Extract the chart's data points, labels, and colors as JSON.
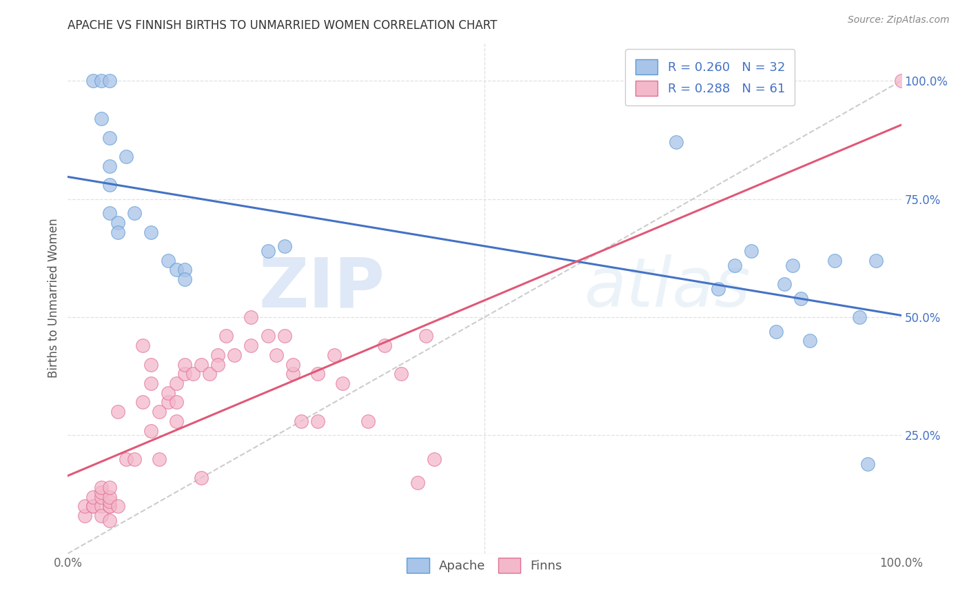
{
  "title": "APACHE VS FINNISH BIRTHS TO UNMARRIED WOMEN CORRELATION CHART",
  "source": "Source: ZipAtlas.com",
  "ylabel": "Births to Unmarried Women",
  "watermark_zip": "ZIP",
  "watermark_atlas": "atlas",
  "apache_fill": "#a8c4e8",
  "finns_fill": "#f4b8cb",
  "apache_edge": "#5b9bd5",
  "finns_edge": "#e07090",
  "apache_line_color": "#4472c4",
  "finns_line_color": "#e05878",
  "dashed_line_color": "#cccccc",
  "background_color": "#ffffff",
  "grid_color": "#e0e0e0",
  "right_axis_color": "#4472c4",
  "legend_R_color": "#4472c4",
  "legend_N_color": "#e05050",
  "legend_apache_R": "0.260",
  "legend_apache_N": "32",
  "legend_finns_R": "0.288",
  "legend_finns_N": "61",
  "ytick_labels": [
    "25.0%",
    "50.0%",
    "75.0%",
    "100.0%"
  ],
  "ytick_positions": [
    0.25,
    0.5,
    0.75,
    1.0
  ],
  "apache_x": [
    0.03,
    0.04,
    0.05,
    0.04,
    0.05,
    0.05,
    0.05,
    0.05,
    0.06,
    0.06,
    0.07,
    0.08,
    0.1,
    0.12,
    0.13,
    0.14,
    0.14,
    0.24,
    0.26,
    0.73,
    0.78,
    0.8,
    0.82,
    0.85,
    0.86,
    0.87,
    0.88,
    0.89,
    0.92,
    0.95,
    0.96,
    0.97
  ],
  "apache_y": [
    1.0,
    1.0,
    1.0,
    0.92,
    0.88,
    0.82,
    0.78,
    0.72,
    0.7,
    0.68,
    0.84,
    0.72,
    0.68,
    0.62,
    0.6,
    0.6,
    0.58,
    0.64,
    0.65,
    0.87,
    0.56,
    0.61,
    0.64,
    0.47,
    0.57,
    0.61,
    0.54,
    0.45,
    0.62,
    0.5,
    0.19,
    0.62
  ],
  "finns_x": [
    0.02,
    0.02,
    0.03,
    0.03,
    0.03,
    0.04,
    0.04,
    0.04,
    0.04,
    0.04,
    0.05,
    0.05,
    0.05,
    0.05,
    0.05,
    0.05,
    0.06,
    0.06,
    0.07,
    0.08,
    0.09,
    0.09,
    0.1,
    0.1,
    0.1,
    0.11,
    0.11,
    0.12,
    0.12,
    0.13,
    0.13,
    0.13,
    0.14,
    0.14,
    0.15,
    0.16,
    0.16,
    0.17,
    0.18,
    0.18,
    0.19,
    0.2,
    0.22,
    0.22,
    0.24,
    0.25,
    0.26,
    0.27,
    0.27,
    0.28,
    0.3,
    0.3,
    0.32,
    0.33,
    0.36,
    0.38,
    0.4,
    0.42,
    0.43,
    0.44,
    1.0
  ],
  "finns_y": [
    0.08,
    0.1,
    0.1,
    0.1,
    0.12,
    0.1,
    0.12,
    0.13,
    0.14,
    0.08,
    0.1,
    0.1,
    0.11,
    0.12,
    0.14,
    0.07,
    0.1,
    0.3,
    0.2,
    0.2,
    0.32,
    0.44,
    0.26,
    0.36,
    0.4,
    0.3,
    0.2,
    0.32,
    0.34,
    0.28,
    0.32,
    0.36,
    0.38,
    0.4,
    0.38,
    0.16,
    0.4,
    0.38,
    0.42,
    0.4,
    0.46,
    0.42,
    0.44,
    0.5,
    0.46,
    0.42,
    0.46,
    0.38,
    0.4,
    0.28,
    0.28,
    0.38,
    0.42,
    0.36,
    0.28,
    0.44,
    0.38,
    0.15,
    0.46,
    0.2,
    1.0
  ],
  "xlim": [
    0.0,
    1.0
  ],
  "ylim": [
    0.0,
    1.08
  ],
  "figsize": [
    14.06,
    8.92
  ],
  "dpi": 100
}
